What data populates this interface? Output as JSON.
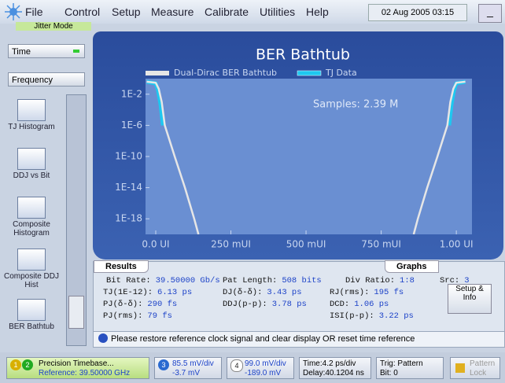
{
  "menu": {
    "items": [
      "File",
      "Control",
      "Setup",
      "Measure",
      "Calibrate",
      "Utilities",
      "Help"
    ],
    "datetime": "02 Aug 2005  03:15",
    "minimize": "_"
  },
  "sidebar": {
    "mode_label": "Jitter Mode",
    "modes": [
      "Time",
      "Frequency"
    ],
    "views": [
      "TJ Histogram",
      "DDJ vs Bit",
      "Composite Histogram",
      "Composite DDJ Hist",
      "BER Bathtub"
    ]
  },
  "chart_data": {
    "type": "line",
    "title": "BER Bathtub",
    "log_scale": true,
    "annotation": "Samples: 2.39 M",
    "xlim": [
      -0.034,
      1.052
    ],
    "ylim": [
      1e-20,
      1
    ],
    "xticks": [
      {
        "value": 0,
        "label": "0.0 UI"
      },
      {
        "value": 0.25,
        "label": "250 mUI"
      },
      {
        "value": 0.5,
        "label": "500 mUI"
      },
      {
        "value": 0.75,
        "label": "750 mUI"
      },
      {
        "value": 1,
        "label": "1.00 UI"
      }
    ],
    "yticks": [
      {
        "value": 0.01,
        "label": "1E-2"
      },
      {
        "value": 1e-06,
        "label": "1E-6"
      },
      {
        "value": 1e-10,
        "label": "1E-10"
      },
      {
        "value": 1e-14,
        "label": "1E-14"
      },
      {
        "value": 1e-18,
        "label": "1E-18"
      }
    ],
    "series": [
      {
        "name": "Dual-Dirac BER Bathtub",
        "color": "#e6e6e6",
        "x": [
          -0.03,
          0.0,
          0.01,
          0.02,
          0.03,
          0.063,
          0.097,
          0.128,
          0.142,
          null,
          0.858,
          0.872,
          0.903,
          0.937,
          0.97,
          0.98,
          0.99,
          1.0,
          1.03
        ],
        "values": [
          0.4,
          0.3,
          0.05,
          0.001,
          1e-06,
          1e-10,
          1e-14,
          1e-18,
          1e-20,
          null,
          1e-20,
          1e-18,
          1e-14,
          1e-10,
          1e-06,
          0.001,
          0.05,
          0.3,
          0.4
        ]
      },
      {
        "name": "TJ Data",
        "color": "#1ec8f0",
        "x": [
          -0.03,
          0.0,
          0.008,
          0.016,
          0.024,
          null,
          0.976,
          0.984,
          0.992,
          1.0,
          1.03
        ],
        "values": [
          0.4,
          0.25,
          0.03,
          0.0005,
          1e-06,
          null,
          1e-06,
          0.0005,
          0.03,
          0.25,
          0.4
        ]
      }
    ]
  },
  "results": {
    "tabs": [
      "Results",
      "Graphs"
    ],
    "rows": [
      [
        [
          "Bit Rate:",
          "39.50000 Gb/s"
        ],
        [
          "Pat Length:",
          "508 bits"
        ],
        [
          "Div Ratio:",
          "1:8"
        ],
        [
          "Src:",
          "3"
        ]
      ],
      [
        [
          "TJ(1E-12):",
          "6.13 ps"
        ],
        [
          "DJ(δ-δ):",
          "3.43 ps"
        ],
        [
          "RJ(rms):",
          "195 fs"
        ]
      ],
      [
        [
          "PJ(δ-δ):",
          "290 fs"
        ],
        [
          "DDJ(p-p):",
          "3.78 ps"
        ],
        [
          "DCD:",
          "1.06 ps"
        ]
      ],
      [
        [
          "PJ(rms):",
          "79 fs"
        ],
        [
          "ISI(p-p):",
          "3.22 ps"
        ]
      ]
    ],
    "button": "Setup & Info"
  },
  "message": "Please restore reference clock signal and clear display OR reset time reference",
  "status": {
    "timebase": [
      "1",
      "2",
      "Precision Timebase...",
      "Reference: 39.50000 GHz"
    ],
    "ch3": [
      "3",
      "85.5 mV/div",
      "-3.7 mV"
    ],
    "ch4": [
      "4",
      "99.0 mV/div",
      "-189.0 mV"
    ],
    "time": [
      "Time:4.2 ps/div",
      "Delay:40.1204 ns"
    ],
    "trig": [
      "Trig: Pattern",
      "Bit: 0"
    ],
    "lock": "Pattern Lock"
  }
}
